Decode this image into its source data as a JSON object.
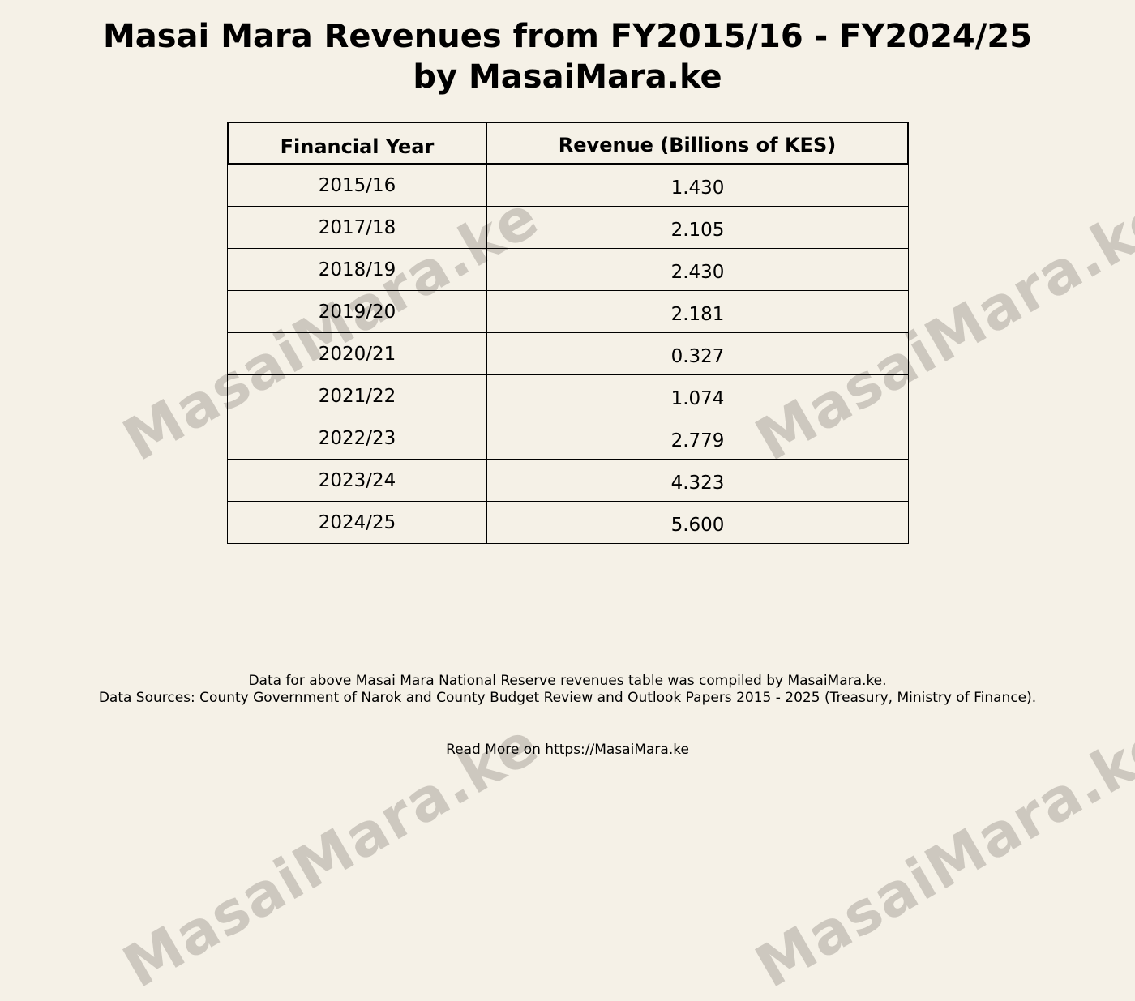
{
  "title": {
    "line1": "Masai Mara Revenues from FY2015/16 - FY2024/25",
    "line2": "by MasaiMara.ke"
  },
  "watermark": "MasaiMara.ke",
  "colors": {
    "background": "#f5f1e7",
    "watermark": "#cdc8bf",
    "text": "#000000"
  },
  "table": {
    "headers": [
      "Financial Year",
      "Revenue (Billions of KES)"
    ],
    "rows": [
      {
        "year": "2015/16",
        "revenue": "1.430"
      },
      {
        "year": "2017/18",
        "revenue": "2.105"
      },
      {
        "year": "2018/19",
        "revenue": "2.430"
      },
      {
        "year": "2019/20",
        "revenue": "2.181"
      },
      {
        "year": "2020/21",
        "revenue": "0.327"
      },
      {
        "year": "2021/22",
        "revenue": "1.074"
      },
      {
        "year": "2022/23",
        "revenue": "2.779"
      },
      {
        "year": "2023/24",
        "revenue": "4.323"
      },
      {
        "year": "2024/25",
        "revenue": "5.600"
      }
    ]
  },
  "footer": {
    "note1": "Data for above Masai Mara National Reserve revenues table was compiled by MasaiMara.ke.",
    "note2": "Data Sources: County Government of Narok and County Budget Review and Outlook Papers 2015 - 2025 (Treasury, Ministry of Finance).",
    "link": "Read More on https://MasaiMara.ke"
  }
}
